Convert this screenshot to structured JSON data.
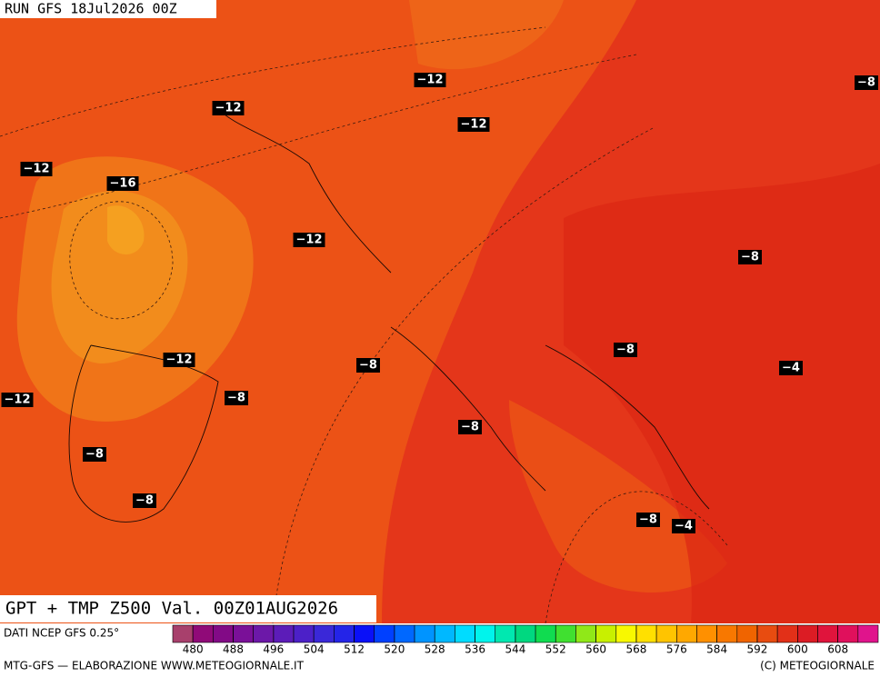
{
  "header": {
    "run": "RUN GFS 18Jul2026 00Z"
  },
  "map": {
    "labels": [
      "−12",
      "−12",
      "−12",
      "−8",
      "−12",
      "−16",
      "−12",
      "−8",
      "−8",
      "−12",
      "−8",
      "−4",
      "−12",
      "−8",
      "−8",
      "−8",
      "−8",
      "−8",
      "−4"
    ]
  },
  "footer": {
    "title": "GPT + TMP Z500 Val. 00Z01AUG2026",
    "source": "DATI NCEP GFS 0.25°",
    "credit": "MTG-GFS — ELABORAZIONE WWW.METEOGIORNALE.IT",
    "copyright": "(C) METEOGIORNALE"
  },
  "legend": {
    "range": [
      476,
      616
    ],
    "ticks": [
      480,
      488,
      496,
      504,
      512,
      520,
      528,
      536,
      544,
      552,
      560,
      568,
      576,
      584,
      592,
      600,
      608
    ],
    "colors": [
      "#a8406c",
      "#900a78",
      "#820a86",
      "#7a1098",
      "#6c18a8",
      "#5c1cb8",
      "#4c20c8",
      "#3a28d8",
      "#2424e8",
      "#0a10f8",
      "#0040ff",
      "#0068ff",
      "#0094ff",
      "#00b8ff",
      "#00dcff",
      "#00f4ec",
      "#00e8b0",
      "#00d880",
      "#10dc50",
      "#40e030",
      "#90e818",
      "#c8f000",
      "#f8f800",
      "#ffe000",
      "#ffc400",
      "#ffa800",
      "#ff9000",
      "#f87800",
      "#f06400",
      "#e84c10",
      "#e23018",
      "#dc1c24",
      "#e0143c",
      "#e0105c",
      "#e0148c"
    ]
  }
}
